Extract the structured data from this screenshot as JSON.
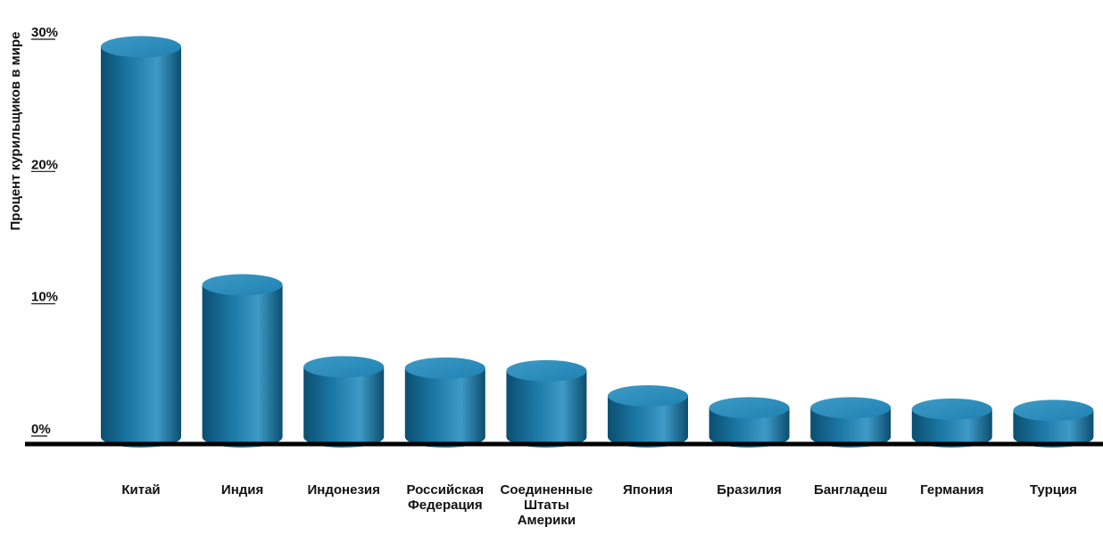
{
  "colors": {
    "bar": "#1a77a4",
    "bar_dark": "#0c4e70",
    "bar_light": "#3e9ac6",
    "bar_top": "#1f82b2",
    "axis": "#000000",
    "text": "#111111"
  },
  "chart_data": {
    "type": "bar",
    "title": "",
    "xlabel": "",
    "ylabel": "Процент курильщиков в мире",
    "ylim": [
      0,
      30
    ],
    "yticks": [
      {
        "value": 0,
        "label": "0%"
      },
      {
        "value": 10,
        "label": "10%"
      },
      {
        "value": 20,
        "label": "20%"
      },
      {
        "value": 30,
        "label": "30%"
      }
    ],
    "categories": [
      [
        "Китай"
      ],
      [
        "Индия"
      ],
      [
        "Индонезия"
      ],
      [
        "Российская",
        "Федерация"
      ],
      [
        "Соединенные",
        "Штаты",
        "Америки"
      ],
      [
        "Япония"
      ],
      [
        "Бразилия"
      ],
      [
        "Бангладеш"
      ],
      [
        "Германия"
      ],
      [
        "Турция"
      ]
    ],
    "values": [
      29.5,
      11.5,
      5.3,
      5.2,
      5.0,
      3.1,
      2.2,
      2.2,
      2.1,
      2.0
    ],
    "grid": false,
    "legend": "none"
  }
}
